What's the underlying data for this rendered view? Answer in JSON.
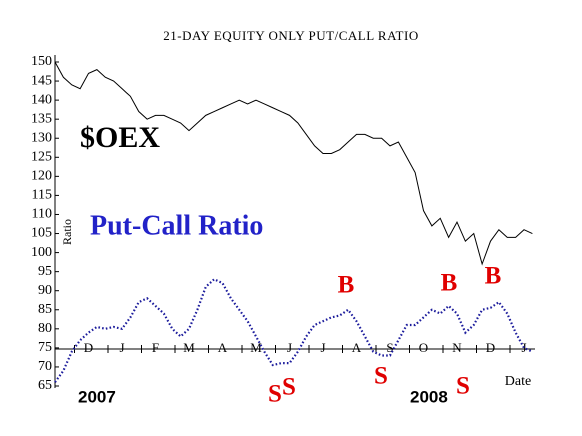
{
  "chart_data": {
    "type": "line",
    "title": "21-DAY EQUITY ONLY PUT/CALL RATIO",
    "y_label": "Ratio",
    "x_label": "Date",
    "categories": [
      null,
      null,
      null,
      null,
      "D",
      null,
      null,
      null,
      "J",
      null,
      null,
      null,
      "F",
      null,
      null,
      null,
      "M",
      null,
      null,
      null,
      "A",
      null,
      null,
      null,
      "M",
      null,
      null,
      null,
      "J",
      null,
      null,
      null,
      "J",
      null,
      null,
      null,
      "A",
      null,
      null,
      null,
      "S",
      null,
      null,
      null,
      "O",
      null,
      null,
      null,
      "N",
      null,
      null,
      null,
      "D",
      null,
      null,
      null,
      "J",
      null
    ],
    "series": [
      {
        "name": "$OEX",
        "color": "#000000",
        "line_style": "solid",
        "values": [
          150,
          146,
          144,
          143,
          147,
          148,
          146,
          145,
          143,
          141,
          137,
          135,
          136,
          136,
          135,
          134,
          132,
          134,
          136,
          137,
          138,
          139,
          140,
          139,
          140,
          139,
          138,
          137,
          136,
          134,
          131,
          128,
          126,
          126,
          127,
          129,
          131,
          131,
          130,
          130,
          128,
          129,
          125,
          121,
          111,
          107,
          109,
          104,
          108,
          103,
          105,
          97,
          103,
          106,
          104,
          104,
          106,
          105
        ]
      },
      {
        "name": "Put-Call Ratio",
        "color": "#1c1c9c",
        "line_style": "dotted",
        "values": [
          66,
          69,
          74,
          77,
          79,
          80.5,
          80,
          80.5,
          80,
          83,
          87,
          88,
          86,
          84,
          80,
          78,
          80,
          85,
          91,
          93,
          92,
          88,
          85,
          82,
          78,
          74,
          70.5,
          71,
          71,
          74,
          78,
          81,
          82,
          83,
          83.5,
          85,
          82,
          78,
          74,
          73,
          73,
          77,
          81,
          81,
          83,
          85,
          84,
          86,
          84,
          79,
          81,
          85,
          85.5,
          87,
          84,
          79,
          75,
          74
        ]
      }
    ],
    "ylim": [
      65,
      150
    ],
    "yticks": [
      65,
      70,
      75,
      80,
      85,
      90,
      95,
      100,
      105,
      110,
      115,
      120,
      125,
      130,
      135,
      140,
      145,
      150
    ],
    "grid": false,
    "years": [
      "2007",
      "2008"
    ],
    "signals": [
      "B",
      "B",
      "B",
      "S",
      "S",
      "S",
      "S"
    ],
    "signal_color": "#e00000"
  }
}
